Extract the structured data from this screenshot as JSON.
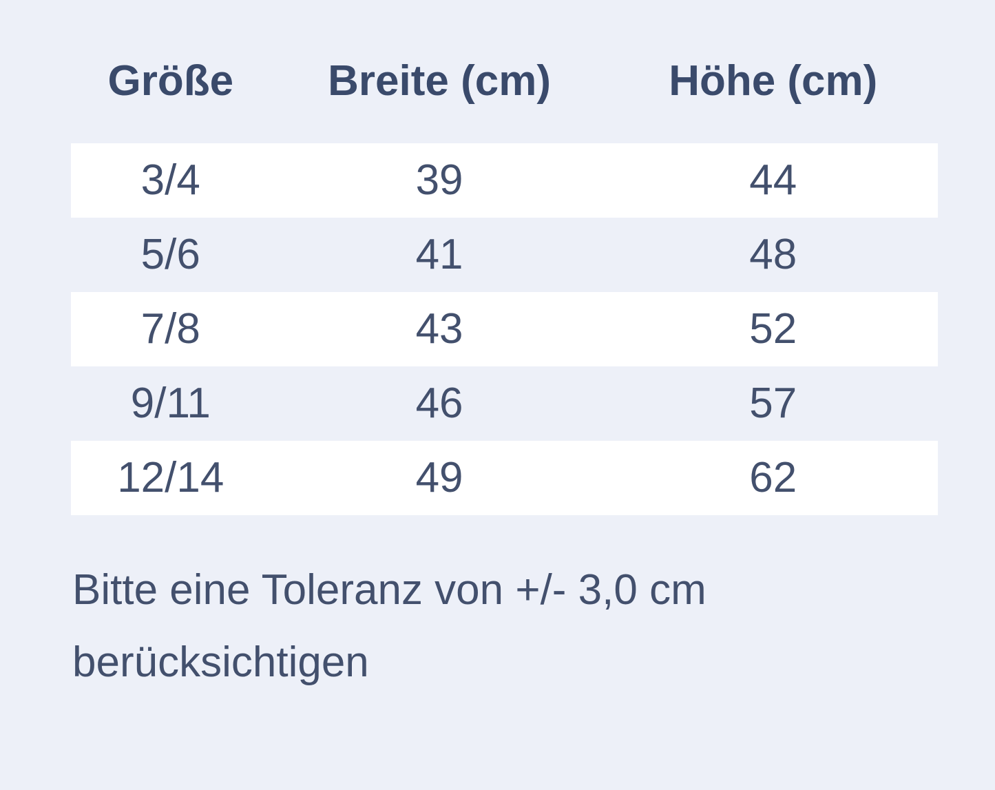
{
  "colors": {
    "page_bg": "#edf0f8",
    "row_alt_bg": "#ffffff",
    "header_text": "#3a4a6b",
    "body_text": "#43506d"
  },
  "chart_data": {
    "type": "table",
    "title": "",
    "columns": [
      "Größe",
      "Breite (cm)",
      "Höhe (cm)"
    ],
    "rows": [
      {
        "size": "3/4",
        "width_cm": "39",
        "height_cm": "44"
      },
      {
        "size": "5/6",
        "width_cm": "41",
        "height_cm": "48"
      },
      {
        "size": "7/8",
        "width_cm": "43",
        "height_cm": "52"
      },
      {
        "size": "9/11",
        "width_cm": "46",
        "height_cm": "57"
      },
      {
        "size": "12/14",
        "width_cm": "49",
        "height_cm": "62"
      }
    ]
  },
  "note": {
    "full_text": "Bitte eine Toleranz von +/- 3,0 cm berücksichtigen",
    "line1": "Bitte eine Toleranz von +/- 3,0 cm",
    "line2": "berücksichtigen"
  }
}
